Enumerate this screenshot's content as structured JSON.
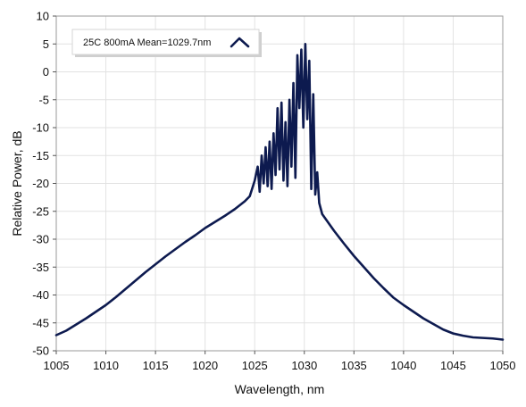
{
  "chart_data": {
    "type": "line",
    "title": "",
    "xlabel": "Wavelength, nm",
    "ylabel": "Relative Power, dB",
    "xlim": [
      1005,
      1050
    ],
    "ylim": [
      -50,
      10
    ],
    "x_ticks": [
      1005,
      1010,
      1015,
      1020,
      1025,
      1030,
      1035,
      1040,
      1045,
      1050
    ],
    "y_ticks": [
      10,
      5,
      0,
      -5,
      -10,
      -15,
      -20,
      -25,
      -30,
      -35,
      -40,
      -45,
      -50
    ],
    "grid": true,
    "legend_position": "top-left",
    "series": [
      {
        "name": "25C 800mA Mean=1029.7nm",
        "color": "#0d1a4f",
        "x": [
          1005,
          1006,
          1007,
          1008,
          1009,
          1010,
          1011,
          1012,
          1013,
          1014,
          1015,
          1016,
          1017,
          1018,
          1019,
          1020,
          1021,
          1022,
          1023,
          1024,
          1024.5,
          1025,
          1025.3,
          1025.5,
          1025.7,
          1025.9,
          1026.1,
          1026.3,
          1026.5,
          1026.7,
          1026.9,
          1027.1,
          1027.3,
          1027.5,
          1027.7,
          1027.9,
          1028.1,
          1028.3,
          1028.5,
          1028.7,
          1028.9,
          1029.1,
          1029.3,
          1029.5,
          1029.7,
          1029.9,
          1030.1,
          1030.3,
          1030.5,
          1030.7,
          1030.9,
          1031.1,
          1031.3,
          1031.5,
          1031.8,
          1032.2,
          1033,
          1034,
          1035,
          1036,
          1037,
          1038,
          1039,
          1040,
          1041,
          1042,
          1043,
          1044,
          1045,
          1046,
          1047,
          1048,
          1049,
          1050
        ],
        "y": [
          -47.2,
          -46.4,
          -45.3,
          -44.2,
          -43.0,
          -41.8,
          -40.4,
          -38.9,
          -37.4,
          -35.9,
          -34.5,
          -33.1,
          -31.8,
          -30.5,
          -29.3,
          -28.0,
          -26.9,
          -25.8,
          -24.6,
          -23.2,
          -22.3,
          -19.5,
          -17.0,
          -21.5,
          -15.0,
          -20.0,
          -13.5,
          -20.5,
          -12.5,
          -21.0,
          -11.0,
          -18.5,
          -6.5,
          -17.5,
          -5.5,
          -19.5,
          -9.0,
          -20.5,
          -5.0,
          -17.0,
          -2.0,
          -19.0,
          3.0,
          -6.5,
          4.0,
          -10.0,
          5.0,
          -8.5,
          2.0,
          -21.0,
          -4.0,
          -22.0,
          -18.0,
          -23.5,
          -25.5,
          -26.5,
          -28.5,
          -30.8,
          -33.0,
          -35.0,
          -37.0,
          -38.8,
          -40.5,
          -41.8,
          -43.0,
          -44.2,
          -45.2,
          -46.2,
          -46.9,
          -47.3,
          -47.6,
          -47.7,
          -47.8,
          -48.0
        ]
      }
    ]
  }
}
